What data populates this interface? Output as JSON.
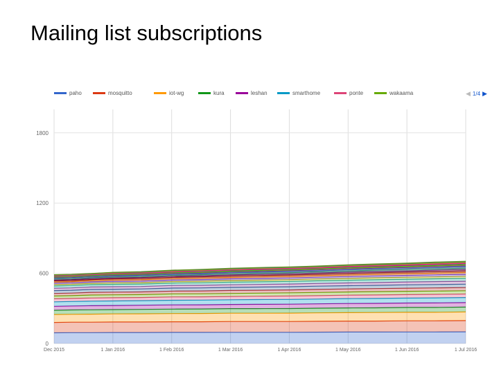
{
  "slide": {
    "title": "Mailing list subscriptions"
  },
  "legend": {
    "page_label": "1/4"
  },
  "chart_data": {
    "type": "area",
    "stacked": true,
    "title": "",
    "xlabel": "",
    "ylabel": "",
    "ylim": [
      0,
      2000
    ],
    "yticks": [
      0,
      600,
      1200,
      1800
    ],
    "xtick_labels": [
      "Dec 2015",
      "1 Jan 2016",
      "1 Feb 2016",
      "1 Mar 2016",
      "1 Apr 2016",
      "1 May 2016",
      "1 Jun 2016",
      "1 Jul 2016"
    ],
    "x": [
      "2015-12-01",
      "2015-12-10",
      "2015-12-20",
      "2016-01-01",
      "2016-01-15",
      "2016-02-01",
      "2016-02-15",
      "2016-03-01",
      "2016-03-15",
      "2016-04-01",
      "2016-04-15",
      "2016-05-01",
      "2016-05-15",
      "2016-06-01",
      "2016-06-15",
      "2016-07-01"
    ],
    "grid": true,
    "legend_position": "top",
    "series": [
      {
        "name": "paho",
        "color": "#3366cc",
        "values": [
          92,
          93,
          93,
          94,
          94,
          95,
          95,
          96,
          96,
          96,
          97,
          98,
          98,
          99,
          99,
          100
        ]
      },
      {
        "name": "mosquitto",
        "color": "#dc3912",
        "values": [
          88,
          89,
          89,
          90,
          90,
          91,
          91,
          92,
          92,
          92,
          93,
          94,
          94,
          95,
          95,
          96
        ]
      },
      {
        "name": "iot-wg",
        "color": "#ff9900",
        "values": [
          68,
          68,
          69,
          69,
          70,
          70,
          71,
          71,
          71,
          72,
          72,
          72,
          73,
          73,
          73,
          74
        ]
      },
      {
        "name": "kura",
        "color": "#109618",
        "values": [
          36,
          37,
          37,
          37,
          38,
          38,
          38,
          39,
          39,
          39,
          40,
          40,
          40,
          41,
          41,
          41
        ]
      },
      {
        "name": "leshan",
        "color": "#990099",
        "values": [
          34,
          34,
          35,
          35,
          35,
          36,
          36,
          36,
          37,
          37,
          37,
          38,
          38,
          38,
          39,
          39
        ]
      },
      {
        "name": "smarthome",
        "color": "#0099c6",
        "values": [
          38,
          38,
          39,
          39,
          39,
          40,
          40,
          40,
          41,
          41,
          41,
          42,
          42,
          42,
          43,
          43
        ]
      },
      {
        "name": "ponte",
        "color": "#dd4477",
        "values": [
          26,
          26,
          27,
          27,
          27,
          28,
          28,
          28,
          28,
          29,
          29,
          29,
          30,
          30,
          30,
          30
        ]
      },
      {
        "name": "wakaama",
        "color": "#66aa00",
        "values": [
          24,
          24,
          25,
          25,
          25,
          26,
          26,
          26,
          26,
          27,
          27,
          27,
          28,
          28,
          28,
          28
        ]
      },
      {
        "name": "",
        "color": "#b82e2e",
        "values": [
          22,
          22,
          23,
          23,
          23,
          24,
          24,
          25,
          25,
          25,
          26,
          26,
          26,
          27,
          27,
          27
        ]
      },
      {
        "name": "",
        "color": "#316395",
        "values": [
          24,
          24,
          25,
          25,
          25,
          26,
          26,
          27,
          27,
          27,
          28,
          28,
          28,
          29,
          29,
          29
        ]
      },
      {
        "name": "",
        "color": "#994499",
        "values": [
          20,
          20,
          21,
          21,
          21,
          22,
          22,
          22,
          23,
          23,
          23,
          24,
          24,
          24,
          25,
          25
        ]
      },
      {
        "name": "",
        "color": "#22aa99",
        "values": [
          20,
          20,
          20,
          21,
          21,
          21,
          22,
          22,
          22,
          23,
          23,
          23,
          24,
          24,
          24,
          25
        ]
      },
      {
        "name": "",
        "color": "#aaaa11",
        "values": [
          12,
          12,
          12,
          13,
          13,
          14,
          14,
          15,
          15,
          15,
          16,
          16,
          17,
          17,
          17,
          18
        ]
      },
      {
        "name": "",
        "color": "#6633cc",
        "values": [
          12,
          12,
          12,
          13,
          13,
          13,
          14,
          14,
          15,
          15,
          15,
          16,
          16,
          16,
          17,
          17
        ]
      },
      {
        "name": "",
        "color": "#e67300",
        "values": [
          10,
          10,
          10,
          11,
          11,
          11,
          12,
          12,
          12,
          13,
          13,
          13,
          14,
          14,
          14,
          15
        ]
      },
      {
        "name": "",
        "color": "#8b0707",
        "values": [
          10,
          10,
          10,
          10,
          11,
          11,
          11,
          12,
          12,
          12,
          12,
          13,
          13,
          13,
          14,
          14
        ]
      },
      {
        "name": "",
        "color": "#651067",
        "values": [
          8,
          8,
          8,
          9,
          9,
          9,
          9,
          10,
          10,
          10,
          11,
          11,
          11,
          11,
          12,
          12
        ]
      },
      {
        "name": "",
        "color": "#329262",
        "values": [
          8,
          8,
          8,
          8,
          9,
          9,
          9,
          9,
          10,
          10,
          10,
          10,
          11,
          11,
          11,
          11
        ]
      },
      {
        "name": "",
        "color": "#5574a6",
        "values": [
          6,
          6,
          6,
          7,
          7,
          7,
          7,
          8,
          8,
          8,
          8,
          9,
          9,
          9,
          9,
          10
        ]
      },
      {
        "name": "",
        "color": "#3b3eac",
        "values": [
          6,
          6,
          6,
          6,
          6,
          7,
          7,
          7,
          7,
          8,
          8,
          8,
          8,
          8,
          9,
          9
        ]
      },
      {
        "name": "",
        "color": "#b77322",
        "values": [
          4,
          4,
          4,
          5,
          5,
          5,
          5,
          5,
          6,
          6,
          6,
          6,
          6,
          7,
          7,
          7
        ]
      },
      {
        "name": "",
        "color": "#16d620",
        "values": [
          4,
          4,
          4,
          4,
          4,
          5,
          5,
          5,
          5,
          5,
          5,
          6,
          6,
          6,
          6,
          6
        ]
      },
      {
        "name": "",
        "color": "#b91383",
        "values": [
          4,
          4,
          4,
          4,
          4,
          4,
          5,
          5,
          5,
          5,
          5,
          5,
          5,
          6,
          6,
          6
        ]
      },
      {
        "name": "",
        "color": "#f4359e",
        "values": [
          3,
          3,
          3,
          3,
          4,
          4,
          4,
          4,
          4,
          4,
          4,
          5,
          5,
          5,
          5,
          5
        ]
      },
      {
        "name": "",
        "color": "#9c5935",
        "values": [
          3,
          3,
          3,
          3,
          3,
          3,
          4,
          4,
          4,
          4,
          4,
          4,
          4,
          4,
          5,
          5
        ]
      },
      {
        "name": "",
        "color": "#a9c413",
        "values": [
          2,
          2,
          2,
          3,
          3,
          3,
          3,
          3,
          3,
          3,
          3,
          4,
          4,
          4,
          4,
          4
        ]
      },
      {
        "name": "",
        "color": "#2a778d",
        "values": [
          2,
          2,
          2,
          2,
          2,
          3,
          3,
          3,
          3,
          3,
          3,
          3,
          3,
          3,
          4,
          4
        ]
      },
      {
        "name": "",
        "color": "#668d1c",
        "values": [
          2,
          2,
          2,
          2,
          2,
          2,
          2,
          3,
          3,
          3,
          3,
          3,
          3,
          3,
          3,
          3
        ]
      }
    ]
  }
}
